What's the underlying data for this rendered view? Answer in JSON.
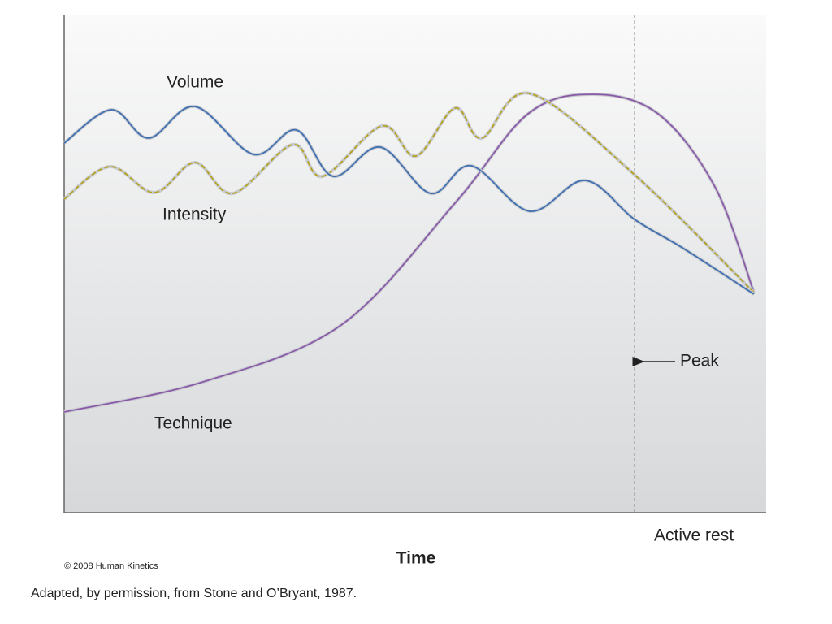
{
  "labels": {
    "volume": "Volume",
    "intensity": "Intensity",
    "technique": "Technique",
    "peak": "Peak",
    "active_rest": "Active rest",
    "x_axis": "Time"
  },
  "copyright": "© 2008 Human Kinetics",
  "caption": "Adapted, by permission, from Stone and O’Bryant, 1987."
}
